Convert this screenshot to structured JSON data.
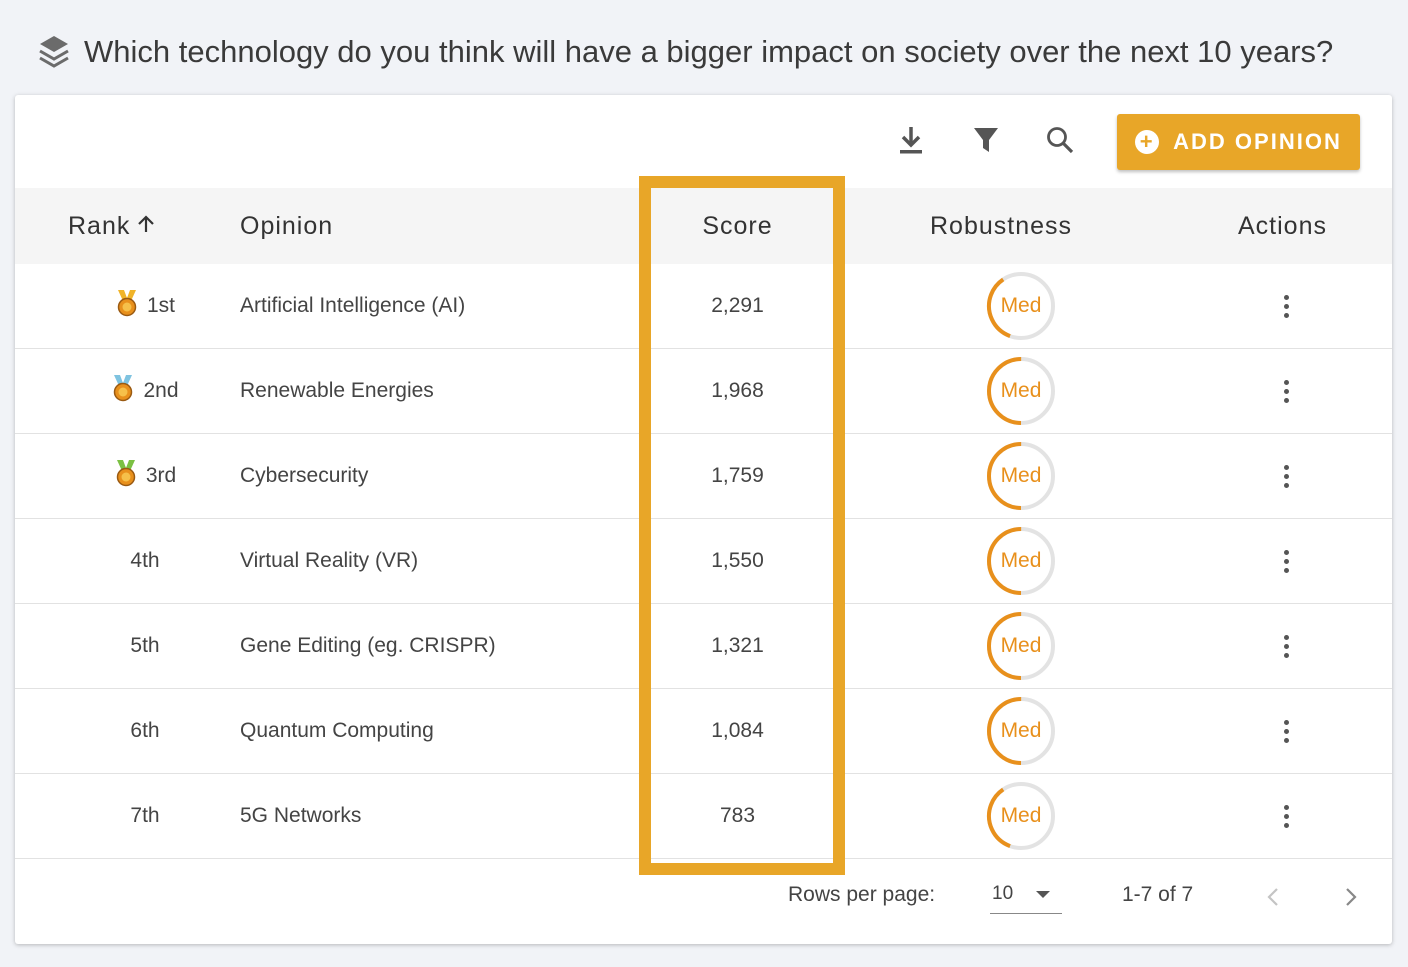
{
  "question": "Which technology do you think will have a bigger impact on society over the next 10 years?",
  "toolbar": {
    "icons": [
      "download-icon",
      "filter-icon",
      "search-icon"
    ],
    "add_label": "ADD OPINION"
  },
  "columns": {
    "rank": "Rank",
    "opinion": "Opinion",
    "score": "Score",
    "robustness": "Robustness",
    "actions": "Actions"
  },
  "rows": [
    {
      "rank": "1st",
      "medal": "gold",
      "opinion": "Artificial Intelligence (AI)",
      "score": "2,291",
      "robustness": "Med",
      "robustness_level": 0.35
    },
    {
      "rank": "2nd",
      "medal": "silver",
      "opinion": "Renewable Energies",
      "score": "1,968",
      "robustness": "Med",
      "robustness_level": 0.5
    },
    {
      "rank": "3rd",
      "medal": "bronze",
      "opinion": "Cybersecurity",
      "score": "1,759",
      "robustness": "Med",
      "robustness_level": 0.5
    },
    {
      "rank": "4th",
      "opinion": "Virtual Reality (VR)",
      "score": "1,550",
      "robustness": "Med",
      "robustness_level": 0.5
    },
    {
      "rank": "5th",
      "opinion": "Gene Editing (eg. CRISPR)",
      "score": "1,321",
      "robustness": "Med",
      "robustness_level": 0.5
    },
    {
      "rank": "6th",
      "opinion": "Quantum Computing",
      "score": "1,084",
      "robustness": "Med",
      "robustness_level": 0.5
    },
    {
      "rank": "7th",
      "opinion": "5G Networks",
      "score": "783",
      "robustness": "Med",
      "robustness_level": 0.35
    }
  ],
  "footer": {
    "rows_per_page_label": "Rows per page:",
    "rows_per_page": "10",
    "range": "1-7 of 7"
  },
  "colors": {
    "accent": "#e8a628",
    "gauge": "#e8901c",
    "gold": "#f0b429",
    "silver": "#7fc3e0",
    "bronze": "#7bc043"
  }
}
